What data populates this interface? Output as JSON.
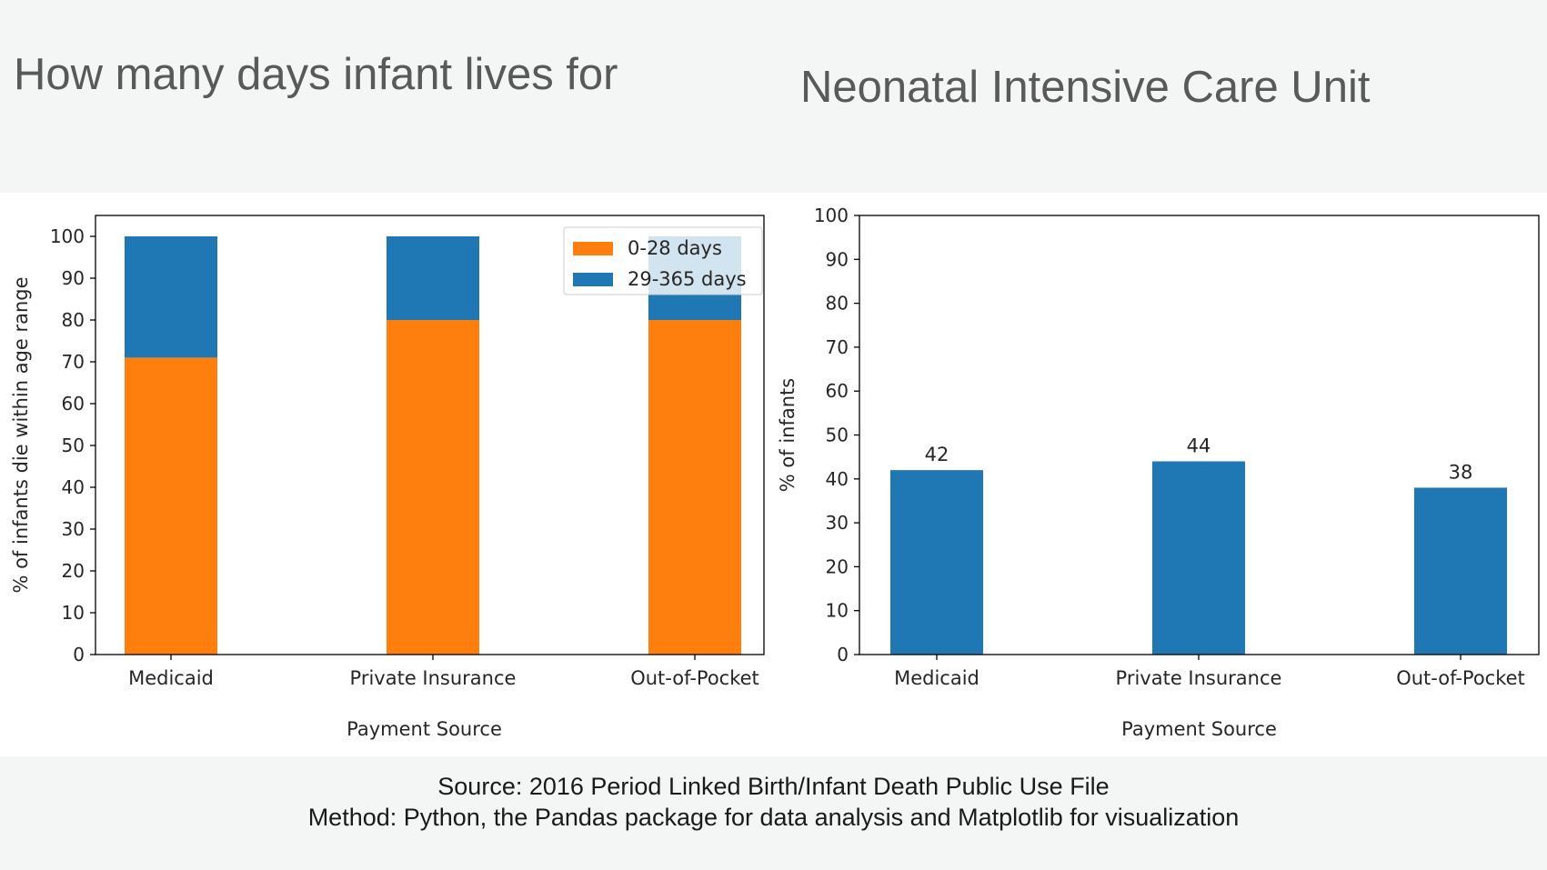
{
  "titles": {
    "left": "How many days infant lives for",
    "right": "Neonatal Intensive Care Unit"
  },
  "footer": {
    "line1": "Source: 2016 Period Linked Birth/Infant Death Public Use File",
    "line2": "Method: Python, the Pandas package for data analysis and Matplotlib for visualization"
  },
  "colors": {
    "orange": "#ff7f0e",
    "blue": "#1f77b4"
  },
  "chart_data": [
    {
      "type": "bar",
      "stacked": true,
      "categories": [
        "Medicaid",
        "Private Insurance",
        "Out-of-Pocket"
      ],
      "series": [
        {
          "name": "0-28 days",
          "values": [
            71,
            80,
            80
          ],
          "color": "#ff7f0e"
        },
        {
          "name": "29-365 days",
          "values": [
            29,
            20,
            20
          ],
          "color": "#1f77b4"
        }
      ],
      "xlabel": "Payment Source",
      "ylabel": "% of infants die within age range",
      "ylim": [
        0,
        105
      ],
      "yticks": [
        0,
        10,
        20,
        30,
        40,
        50,
        60,
        70,
        80,
        90,
        100
      ],
      "legend": "top-right",
      "grid": false
    },
    {
      "type": "bar",
      "categories": [
        "Medicaid",
        "Private Insurance",
        "Out-of-Pocket"
      ],
      "values": [
        42,
        44,
        38
      ],
      "data_labels": [
        "42",
        "44",
        "38"
      ],
      "color": "#1f77b4",
      "xlabel": "Payment Source",
      "ylabel": "% of infants",
      "ylim": [
        0,
        100
      ],
      "yticks": [
        0,
        10,
        20,
        30,
        40,
        50,
        60,
        70,
        80,
        90,
        100
      ],
      "grid": false
    }
  ]
}
